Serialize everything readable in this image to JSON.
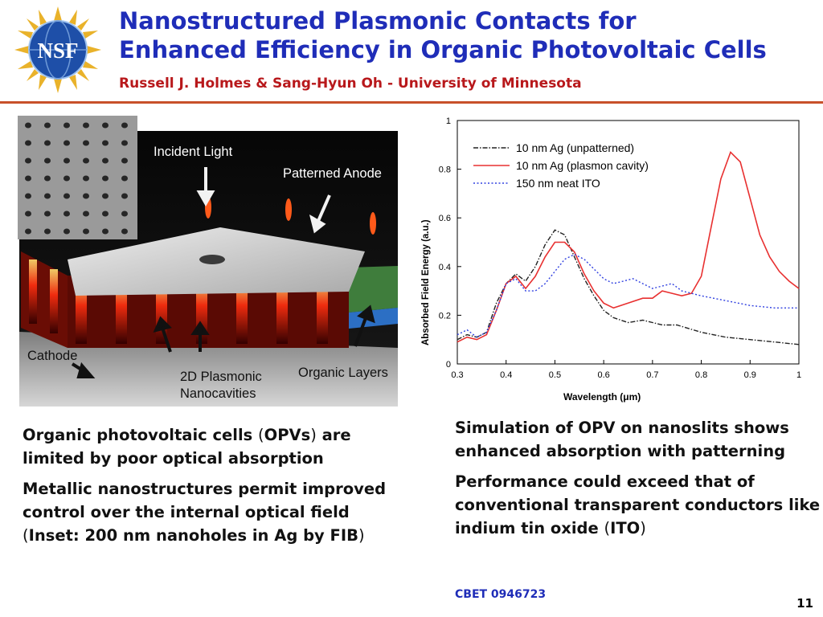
{
  "header": {
    "logo_text": "NSF",
    "title_line1": "Nanostructured Plasmonic Contacts for",
    "title_line2": "Enhanced Efficiency in Organic Photovoltaic Cells",
    "authors": "Russell J. Holmes & Sang-Hyun Oh  -  University of Minnesota"
  },
  "illustration": {
    "labels": {
      "incident_light": "Incident Light",
      "patterned_anode": "Patterned Anode",
      "cathode": "Cathode",
      "plasmonic_line1": "2D Plasmonic",
      "plasmonic_line2": "Nanocavities",
      "organic_layers": "Organic Layers"
    }
  },
  "left_text": {
    "p1_a": "Organic photovoltaic cells ",
    "p1_b": "(",
    "p1_bold": "OPVs",
    "p1_c": ")",
    "p1_d": " are limited by poor optical absorption",
    "p2_a": "Metallic nanostructures permit improved control over the internal optical field  ",
    "p2_b": "(",
    "p2_bold": "Inset: 200 nm nanoholes in Ag by FIB",
    "p2_c": ")"
  },
  "right_text": {
    "p1": "Simulation of OPV on nanoslits shows enhanced absorption with patterning",
    "p2_a": "Performance could exceed that of conventional transparent conductors like indium tin oxide ",
    "p2_b": "(",
    "p2_bold": "ITO",
    "p2_c": ")"
  },
  "footer": {
    "grant": "CBET 0946723",
    "page_number": "11"
  },
  "chart_data": {
    "type": "line",
    "xlabel": "Wavelength (μm)",
    "ylabel": "Absorbed Field Energy (a.u.)",
    "xlim": [
      0.3,
      1.0
    ],
    "ylim": [
      0,
      1
    ],
    "xticks": [
      "0.3",
      "0.4",
      "0.5",
      "0.6",
      "0.7",
      "0.8",
      "0.9",
      "1"
    ],
    "yticks": [
      "0",
      "0.2",
      "0.4",
      "0.6",
      "0.8",
      "1"
    ],
    "legend_position": "top-left",
    "series": [
      {
        "name": "10 nm Ag (unpatterned)",
        "color": "#222222",
        "style": "dashdot",
        "x": [
          0.3,
          0.32,
          0.34,
          0.36,
          0.38,
          0.4,
          0.42,
          0.44,
          0.46,
          0.48,
          0.5,
          0.52,
          0.54,
          0.56,
          0.58,
          0.6,
          0.62,
          0.65,
          0.68,
          0.7,
          0.72,
          0.75,
          0.8,
          0.85,
          0.9,
          0.95,
          1.0
        ],
        "y": [
          0.1,
          0.12,
          0.11,
          0.13,
          0.25,
          0.33,
          0.37,
          0.34,
          0.4,
          0.49,
          0.55,
          0.53,
          0.44,
          0.35,
          0.28,
          0.22,
          0.19,
          0.17,
          0.18,
          0.17,
          0.16,
          0.16,
          0.13,
          0.11,
          0.1,
          0.09,
          0.08
        ]
      },
      {
        "name": "10 nm Ag (plasmon cavity)",
        "color": "#e83030",
        "style": "solid",
        "x": [
          0.3,
          0.32,
          0.34,
          0.36,
          0.38,
          0.4,
          0.42,
          0.44,
          0.46,
          0.48,
          0.5,
          0.52,
          0.54,
          0.56,
          0.58,
          0.6,
          0.62,
          0.65,
          0.68,
          0.7,
          0.72,
          0.74,
          0.76,
          0.78,
          0.8,
          0.82,
          0.84,
          0.86,
          0.88,
          0.9,
          0.92,
          0.94,
          0.96,
          0.98,
          1.0
        ],
        "y": [
          0.09,
          0.11,
          0.1,
          0.12,
          0.22,
          0.33,
          0.36,
          0.31,
          0.36,
          0.44,
          0.5,
          0.5,
          0.46,
          0.37,
          0.3,
          0.25,
          0.23,
          0.25,
          0.27,
          0.27,
          0.3,
          0.29,
          0.28,
          0.29,
          0.36,
          0.56,
          0.76,
          0.87,
          0.83,
          0.68,
          0.53,
          0.44,
          0.38,
          0.34,
          0.31
        ]
      },
      {
        "name": "150 nm neat ITO",
        "color": "#3040e0",
        "style": "dotted",
        "x": [
          0.3,
          0.32,
          0.34,
          0.36,
          0.38,
          0.4,
          0.42,
          0.44,
          0.46,
          0.48,
          0.5,
          0.52,
          0.54,
          0.56,
          0.58,
          0.6,
          0.62,
          0.64,
          0.66,
          0.68,
          0.7,
          0.72,
          0.74,
          0.76,
          0.8,
          0.85,
          0.9,
          0.95,
          1.0
        ],
        "y": [
          0.12,
          0.14,
          0.11,
          0.13,
          0.22,
          0.33,
          0.35,
          0.3,
          0.3,
          0.33,
          0.38,
          0.43,
          0.45,
          0.43,
          0.39,
          0.35,
          0.33,
          0.34,
          0.35,
          0.33,
          0.31,
          0.32,
          0.33,
          0.3,
          0.28,
          0.26,
          0.24,
          0.23,
          0.23
        ]
      }
    ]
  }
}
